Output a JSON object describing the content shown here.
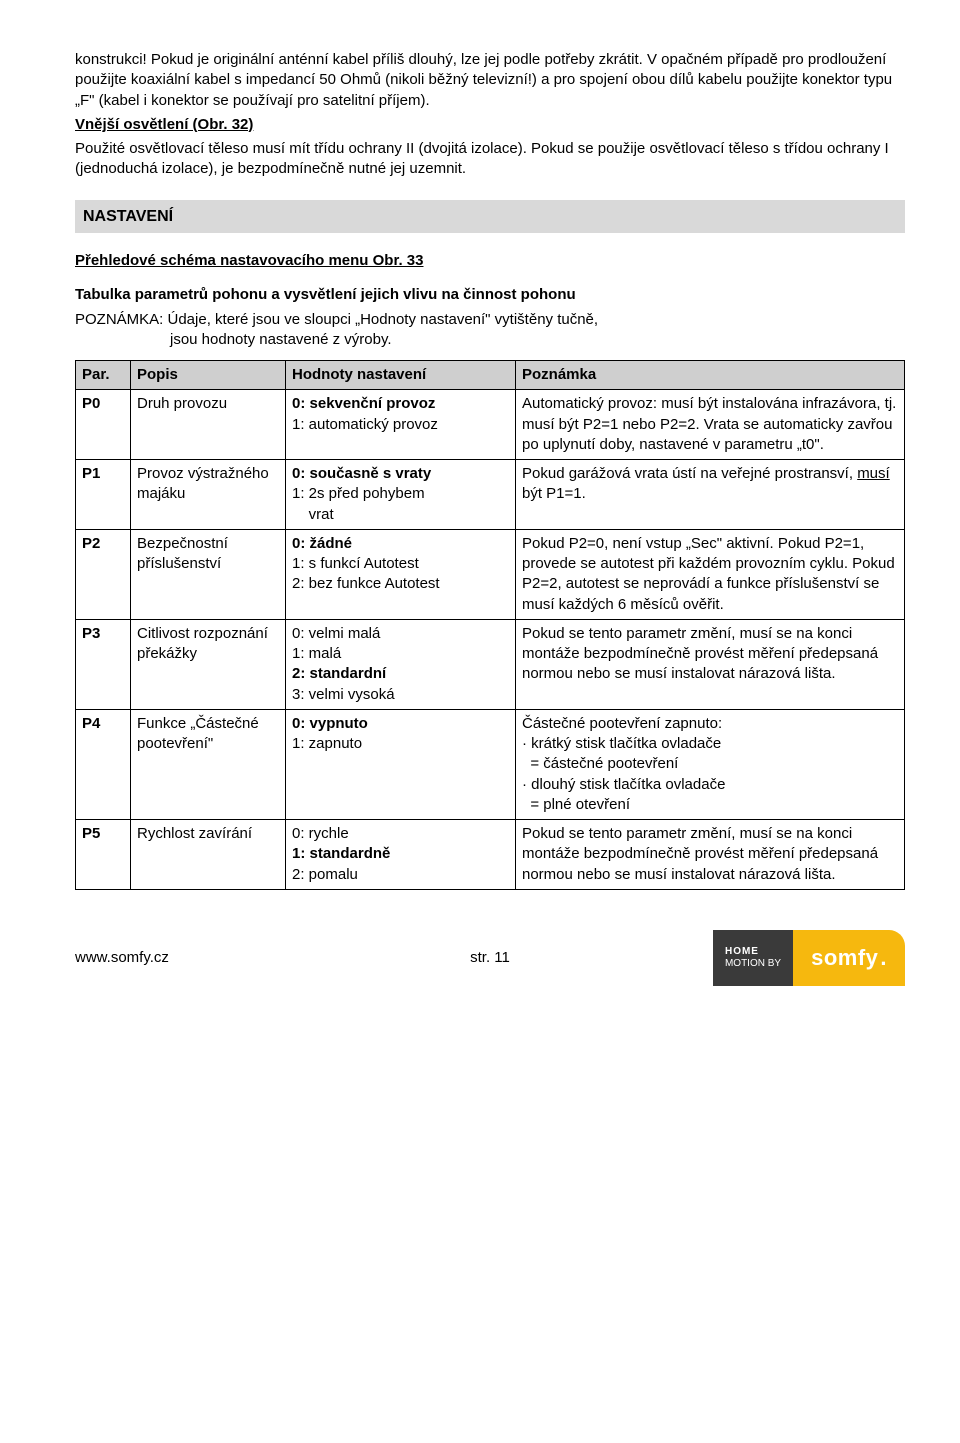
{
  "intro": {
    "p1": "konstrukci! Pokud je originální anténní kabel příliš dlouhý, lze jej podle potřeby zkrátit. V opačném případě pro prodloužení použijte koaxiální kabel s impedancí 50 Ohmů (nikoli běžný televizní!) a pro spojení obou dílů kabelu použijte konektor typu „F\" (kabel i konektor se používají pro satelitní příjem).",
    "h1": "Vnější osvětlení (Obr. 32)",
    "p2": "Použité osvětlovací těleso musí mít třídu ochrany II (dvojitá izolace). Pokud se použije osvětlovací těleso s třídou ochrany I (jednoduchá izolace), je bezpodmínečně nutné jej uzemnit."
  },
  "section": {
    "title": "NASTAVENÍ",
    "subhead_a": "Přehledové schéma nastavovacího menu",
    "subhead_b": " Obr. 33",
    "tableTitle": "Tabulka parametrů pohonu a vysvětlení jejich vlivu na činnost pohonu",
    "note_a": "POZNÁMKA: Údaje, které jsou ve sloupci „Hodnoty nastavení\" vytištěny tučně,",
    "note_b": "jsou hodnoty nastavené z výroby."
  },
  "headers": {
    "par": "Par.",
    "popis": "Popis",
    "hodn": "Hodnoty nastavení",
    "pozn": "Poznámka"
  },
  "rows": {
    "p0": {
      "par": "P0",
      "popis": "Druh provozu",
      "v0": "0: sekvenční provoz",
      "v1": "1: automatický provoz",
      "note": "Automatický provoz: musí být instalována infrazávora, tj. musí být P2=1 nebo P2=2. Vrata se automaticky zavřou po uplynutí doby, nastavené v parametru „t0\"."
    },
    "p1": {
      "par": "P1",
      "popis": "Provoz výstražného majáku",
      "v0": "0: současně s vraty",
      "v1a": "1: 2s před pohybem",
      "v1b": "    vrat",
      "note_a": "Pokud garážová vrata ústí na veřejné prostransví, ",
      "note_u": "musí",
      "note_b": " být P1=1."
    },
    "p2": {
      "par": "P2",
      "popis": "Bezpečnostní příslušenství",
      "v0": "0: žádné",
      "v1": "1: s funkcí Autotest",
      "v2": "2: bez funkce Autotest",
      "note": "Pokud P2=0, není vstup „Sec\" aktivní. Pokud P2=1, provede se autotest při každém provozním cyklu. Pokud P2=2, autotest se neprovádí a funkce příslušenství se musí každých 6 měsíců ověřit."
    },
    "p3": {
      "par": "P3",
      "popis": "Citlivost rozpoznání překážky",
      "v0": "0: velmi malá",
      "v1": "1: malá",
      "v2": "2: standardní",
      "v3": "3: velmi vysoká",
      "note": "Pokud se tento parametr změní, musí se na konci montáže bezpodmínečně provést měření předepsaná normou nebo se musí instalovat nárazová lišta."
    },
    "p4": {
      "par": "P4",
      "popis": "Funkce „Částečné pootevření\"",
      "v0": "0: vypnuto",
      "v1": "1: zapnuto",
      "n1": "Částečné pootevření zapnuto:",
      "n2": "· krátký stisk tlačítka ovladače",
      "n3": "  = částečné pootevření",
      "n4": "· dlouhý stisk tlačítka ovladače",
      "n5": "  = plné otevření"
    },
    "p5": {
      "par": "P5",
      "popis": "Rychlost zavírání",
      "v0": "0: rychle",
      "v1": "1: standardně",
      "v2": "2: pomalu",
      "note": "Pokud se tento parametr změní, musí se na konci montáže bezpodmínečně provést měření předepsaná normou nebo se musí instalovat nárazová lišta."
    }
  },
  "footer": {
    "url": "www.somfy.cz",
    "page": "str. 11",
    "logo_dark_a": "HOME",
    "logo_dark_b": "MOTION BY",
    "logo_yellow": "somfy"
  }
}
